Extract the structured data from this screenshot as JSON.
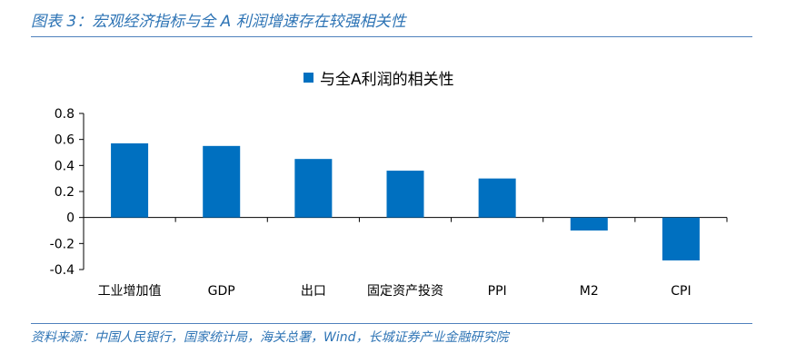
{
  "figure": {
    "title": "图表 3：宏观经济指标与全 A 利润增速存在较强相关性",
    "source": "资料来源：中国人民银行，国家统计局，海关总署，Wind，长城证券产业金融研究院"
  },
  "colors": {
    "bar": "#0070c0",
    "accent": "#2e74b5",
    "rule": "#4f81bd"
  },
  "chart_data": {
    "type": "bar",
    "categories": [
      "工业增加值",
      "GDP",
      "出口",
      "固定资产投资",
      "PPI",
      "M2",
      "CPI"
    ],
    "series": [
      {
        "name": "与全A利润的相关性",
        "values": [
          0.57,
          0.55,
          0.45,
          0.36,
          0.3,
          -0.1,
          -0.33
        ]
      }
    ],
    "ylim": [
      -0.4,
      0.8
    ],
    "yticks": [
      -0.4,
      -0.2,
      0,
      0.2,
      0.4,
      0.6,
      0.8
    ],
    "ytick_labels": [
      "-0.4",
      "-0.2",
      "0",
      "0.2",
      "0.4",
      "0.6",
      "0.8"
    ],
    "legend_position": "top-center",
    "grid": false
  }
}
